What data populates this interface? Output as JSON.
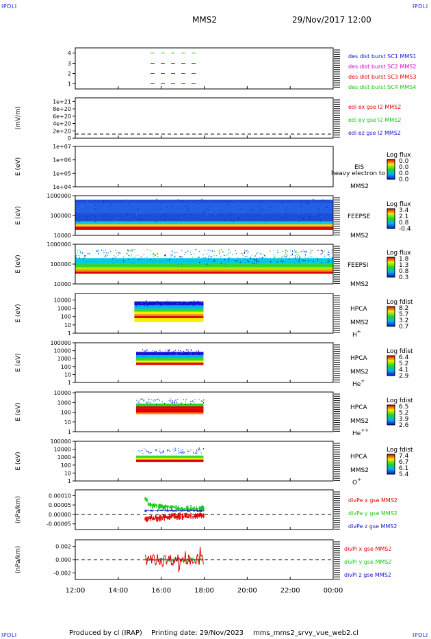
{
  "corner_label": "IPDLI",
  "header": {
    "spacecraft": "MMS2",
    "datetime": "29/Nov/2017 12:00"
  },
  "footer": {
    "produced_by": "Produced by cl (IRAP)",
    "printing_date": "Printing date: 29/Nov/2023",
    "script_name": "mms_mms2_srvy_vue_web2.cl"
  },
  "colors": {
    "red": "#e00000",
    "green": "#12c812",
    "blue": "#1414c8",
    "magenta": "#d000d0",
    "corner": "#1a2bd0"
  },
  "chart_data": [
    {
      "type": "timeline",
      "panel": "burst",
      "yticks": [
        "1",
        "2",
        "3",
        "4"
      ],
      "ylim": [
        0.5,
        4.5
      ],
      "legend": [
        {
          "label": "des dist burst SC1 MMS1",
          "color": "#1414c8"
        },
        {
          "label": "des dist burst SC2 MMS2",
          "color": "#d000d0"
        },
        {
          "label": "des dist burst SC3 MMS3",
          "color": "#e00000"
        },
        {
          "label": "des dist burst SC4 MMS4",
          "color": "#12c812"
        }
      ],
      "segments": {
        "x_range": [
          "15:30",
          "17:45"
        ]
      }
    },
    {
      "type": "line",
      "panel": "edi",
      "ylabel": "(mV/m)",
      "yticks": [
        "0",
        "2e+20",
        "4e+20",
        "6e+20",
        "8e+20",
        "1e+21"
      ],
      "ylim": [
        0,
        1.1e+21
      ],
      "legend": [
        {
          "label": "edi ex gse l2 MMS2",
          "color": "#e00000"
        },
        {
          "label": "edi ey gse l2 MMS2",
          "color": "#12c812"
        },
        {
          "label": "edi ez gse l2 MMS2",
          "color": "#1414c8"
        }
      ],
      "series": []
    },
    {
      "type": "heatmap",
      "panel": "eis",
      "ylabel": "E (eV)",
      "yticks": [
        "1e+04",
        "1e+05",
        "1e+06",
        "1e+07"
      ],
      "instrument": "EIS",
      "sc": "MMS2",
      "note": "heavy electron to",
      "colorbar": {
        "title": "Log flux",
        "ticks": [
          "0.0",
          "0.0",
          "0.0",
          "0.0"
        ]
      },
      "fill": []
    },
    {
      "type": "heatmap",
      "panel": "feepse",
      "ylabel": "E (eV)",
      "yticks": [
        "10000",
        "100000",
        "1000000"
      ],
      "ylim": [
        10000,
        1000000
      ],
      "instrument": "FEEPSE",
      "sc": "MMS2",
      "colorbar": {
        "title": "Log flux",
        "ticks": [
          "3.4",
          "2.1",
          "0.8",
          "-0.4"
        ]
      },
      "time_range": [
        "12:00",
        "24:00"
      ]
    },
    {
      "type": "heatmap",
      "panel": "feepsi",
      "ylabel": "E (eV)",
      "yticks": [
        "10000",
        "100000",
        "1000000"
      ],
      "ylim": [
        10000,
        1000000
      ],
      "instrument": "FEEPSI",
      "sc": "MMS2",
      "colorbar": {
        "title": "Log flux",
        "ticks": [
          "1.8",
          "1.3",
          "0.8",
          "0.3"
        ]
      },
      "time_range": [
        "12:00",
        "24:00"
      ]
    },
    {
      "type": "heatmap",
      "panel": "hpca_h",
      "ylabel": "E (eV)",
      "yticks": [
        "1",
        "10",
        "100",
        "1000",
        "10000"
      ],
      "ylim": [
        1,
        60000
      ],
      "instrument": "HPCA",
      "sc": "MMS2",
      "species": "H",
      "charge": "+",
      "colorbar": {
        "title": "Log fdist",
        "ticks": [
          "8.2",
          "5.7",
          "3.2",
          "0.7"
        ]
      },
      "time_range": [
        "14:45",
        "18:00"
      ]
    },
    {
      "type": "heatmap",
      "panel": "hpca_he1",
      "ylabel": "E (eV)",
      "yticks": [
        "1",
        "10",
        "100",
        "1000",
        "10000",
        "100000"
      ],
      "ylim": [
        1,
        100000
      ],
      "instrument": "HPCA",
      "sc": "MMS2",
      "species": "He",
      "charge": "+",
      "colorbar": {
        "title": "Log fdist",
        "ticks": [
          "6.4",
          "5.2",
          "4.1",
          "2.9"
        ]
      },
      "time_range": [
        "14:45",
        "18:00"
      ]
    },
    {
      "type": "heatmap",
      "panel": "hpca_he2",
      "ylabel": "E (eV)",
      "yticks": [
        "1",
        "10",
        "100",
        "1000",
        "10000"
      ],
      "ylim": [
        1,
        12000
      ],
      "instrument": "HPCA",
      "sc": "MMS2",
      "species": "He",
      "charge": "++",
      "colorbar": {
        "title": "Log fdist",
        "ticks": [
          "6.5",
          "5.2",
          "3.9",
          "2.6"
        ]
      },
      "time_range": [
        "14:45",
        "18:00"
      ]
    },
    {
      "type": "heatmap",
      "panel": "hpca_o",
      "ylabel": "E (eV)",
      "yticks": [
        "1",
        "10",
        "100",
        "1000",
        "10000",
        "100000"
      ],
      "ylim": [
        1,
        100000
      ],
      "instrument": "HPCA",
      "sc": "MMS2",
      "species": "O",
      "charge": "+",
      "colorbar": {
        "title": "Log fdist",
        "ticks": [
          "7.4",
          "6.7",
          "6.1",
          "5.4"
        ]
      },
      "time_range": [
        "14:45",
        "18:00"
      ]
    },
    {
      "type": "line",
      "panel": "divpe",
      "ylabel": "(nPa/km)",
      "yticks": [
        "-0.00005",
        "0.00000",
        "0.00005",
        "0.00010"
      ],
      "ylim": [
        -8e-05,
        0.00013
      ],
      "legend": [
        {
          "label": "divPe x gse MMS2",
          "color": "#e00000"
        },
        {
          "label": "divPe y gse MMS2",
          "color": "#12c812"
        },
        {
          "label": "divPe z gse MMS2",
          "color": "#1414c8"
        }
      ],
      "series": [
        {
          "x": [
            "15:15",
            "15:30",
            "16:00",
            "16:30",
            "17:00",
            "17:30",
            "18:00"
          ],
          "values": [
            8e-05,
            5e-05,
            4e-05,
            4e-05,
            3e-05,
            3e-05,
            3e-05
          ]
        },
        {
          "x": [
            "15:15",
            "15:30",
            "16:00",
            "16:30",
            "17:00",
            "17:30",
            "18:00"
          ],
          "values": [
            -3e-05,
            -2e-05,
            -2e-05,
            -1e-05,
            -1e-05,
            -1e-05,
            -1e-05
          ]
        },
        {
          "x": [
            "15:15",
            "15:30",
            "16:00",
            "16:30",
            "17:00",
            "17:30",
            "18:00"
          ],
          "values": [
            2e-05,
            2e-05,
            2e-05,
            2e-05,
            2e-05,
            2e-05,
            2e-05
          ]
        }
      ]
    },
    {
      "type": "line",
      "panel": "divpi",
      "ylabel": "(nPa/km)",
      "yticks": [
        "-0.002",
        "0.000",
        "0.002"
      ],
      "ylim": [
        -0.003,
        0.003
      ],
      "legend": [
        {
          "label": "divPi x gse MMS2",
          "color": "#e00000"
        },
        {
          "label": "divPi y gse MMS2",
          "color": "#12c812"
        },
        {
          "label": "divPi z gse MMS2",
          "color": "#1414c8"
        }
      ],
      "series": []
    }
  ],
  "xaxis": {
    "ticks": [
      "12:00",
      "14:00",
      "16:00",
      "18:00",
      "20:00",
      "22:00",
      "00:00"
    ]
  }
}
